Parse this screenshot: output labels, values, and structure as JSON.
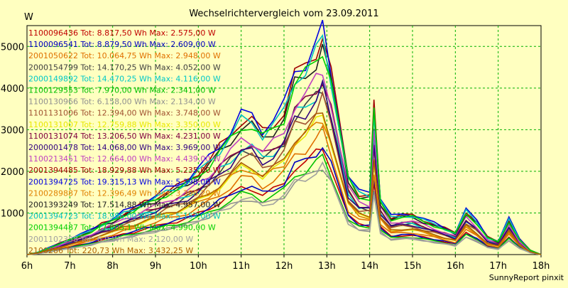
{
  "chart_data": {
    "type": "line",
    "title": "Wechselrichtervergleich vom 23.09.2011",
    "ylabel": "W",
    "footer": "SunnyReport pinxit",
    "ylim": [
      0,
      5500
    ],
    "yticks": [
      1000,
      2000,
      3000,
      4000,
      5000
    ],
    "xlim": [
      6,
      18
    ],
    "xticks": [
      {
        "v": 6,
        "label": "6h"
      },
      {
        "v": 7,
        "label": "7h"
      },
      {
        "v": 8,
        "label": "8h"
      },
      {
        "v": 9,
        "label": "9h"
      },
      {
        "v": 10,
        "label": "10h"
      },
      {
        "v": 11,
        "label": "11h"
      },
      {
        "v": 12,
        "label": "12h"
      },
      {
        "v": 13,
        "label": "13h"
      },
      {
        "v": 14,
        "label": "14h"
      },
      {
        "v": 15,
        "label": "15h"
      },
      {
        "v": 16,
        "label": "16h"
      },
      {
        "v": 17,
        "label": "17h"
      },
      {
        "v": 18,
        "label": "18h"
      }
    ],
    "grid": true,
    "x": [
      6.0,
      6.25,
      6.5,
      6.75,
      7.0,
      7.25,
      7.5,
      7.75,
      8.0,
      8.25,
      8.5,
      8.75,
      9.0,
      9.25,
      9.5,
      9.75,
      10.0,
      10.25,
      10.5,
      10.75,
      11.0,
      11.25,
      11.5,
      11.75,
      12.0,
      12.25,
      12.5,
      12.75,
      12.9,
      13.1,
      13.5,
      13.75,
      14.0,
      14.1,
      14.25,
      14.5,
      14.75,
      15.0,
      15.25,
      15.5,
      15.75,
      16.0,
      16.25,
      16.5,
      16.75,
      17.0,
      17.25,
      17.5,
      17.75,
      18.0
    ],
    "shape": [
      0.0,
      0.01,
      0.03,
      0.05,
      0.07,
      0.09,
      0.11,
      0.14,
      0.16,
      0.19,
      0.21,
      0.24,
      0.26,
      0.29,
      0.31,
      0.34,
      0.38,
      0.43,
      0.49,
      0.55,
      0.62,
      0.62,
      0.56,
      0.6,
      0.66,
      0.82,
      0.86,
      0.94,
      1.0,
      0.82,
      0.36,
      0.28,
      0.27,
      0.68,
      0.25,
      0.17,
      0.18,
      0.18,
      0.16,
      0.14,
      0.12,
      0.1,
      0.2,
      0.15,
      0.08,
      0.06,
      0.16,
      0.07,
      0.02,
      0.0
    ],
    "series": [
      {
        "name": "1100096436",
        "total": "8.817,50",
        "max": "2.575,00",
        "peak": 2575,
        "color": "#C00000"
      },
      {
        "name": "1100096541",
        "total": "8.879,50",
        "max": "2.609,00",
        "peak": 2609,
        "color": "#0000C0"
      },
      {
        "name": "2001050622",
        "total": "10.064,75",
        "max": "2.948,00",
        "peak": 2948,
        "color": "#E07000"
      },
      {
        "name": "2000154799",
        "total": "14.170,25",
        "max": "4.052,00",
        "peak": 4052,
        "color": "#404040"
      },
      {
        "name": "2000149892",
        "total": "14.470,25",
        "max": "4.116,00",
        "peak": 4116,
        "color": "#00C8C8"
      },
      {
        "name": "1100129553",
        "total": "7.970,00",
        "max": "2.341,00",
        "peak": 2341,
        "color": "#00C000"
      },
      {
        "name": "1100130966",
        "total": "6.158,00",
        "max": "2.134,00",
        "peak": 2134,
        "color": "#909090"
      },
      {
        "name": "1101131006",
        "total": "12.394,00",
        "max": "3.748,00",
        "peak": 3748,
        "color": "#A05030"
      },
      {
        "name": "1100131007",
        "total": "12.759,88",
        "max": "3.350,00",
        "peak": 3350,
        "color": "#E8E800"
      },
      {
        "name": "1100131074",
        "total": "13.206,50",
        "max": "4.231,00",
        "peak": 4231,
        "color": "#800040"
      },
      {
        "name": "2000001478",
        "total": "14.068,00",
        "max": "3.969,00",
        "peak": 3969,
        "color": "#300080"
      },
      {
        "name": "1100213451",
        "total": "12.664,00",
        "max": "4.439,00",
        "peak": 4439,
        "color": "#C040C0"
      },
      {
        "name": "2001394485",
        "total": "18.929,88",
        "max": "5.235,00",
        "peak": 5235,
        "color": "#A00000"
      },
      {
        "name": "2001394725",
        "total": "19.315,13",
        "max": "5.398,00",
        "peak": 5398,
        "color": "#0000E0"
      },
      {
        "name": "2100289887",
        "total": "12.396,49",
        "max": "3.308,29",
        "peak": 3308,
        "color": "#E08000"
      },
      {
        "name": "2001393249",
        "total": "17.514,88",
        "max": "4.957,00",
        "peak": 4957,
        "color": "#202020"
      },
      {
        "name": "2001394723",
        "total": "18.986,00",
        "max": "5.157,00",
        "peak": 5157,
        "color": "#00C0C0"
      },
      {
        "name": "2001394487",
        "total": "17.805,1",
        "max": "4.990,00",
        "peak": 4990,
        "color": "#00D000"
      },
      {
        "name": "2001102358",
        "total": "6.9",
        "max": "2.120,00",
        "peak": 2120,
        "color": "#A0A0A0"
      },
      {
        "name": "2100286",
        "total": "220,73",
        "max": "3.432,25",
        "peak": 3432,
        "color": "#B06000"
      }
    ]
  }
}
